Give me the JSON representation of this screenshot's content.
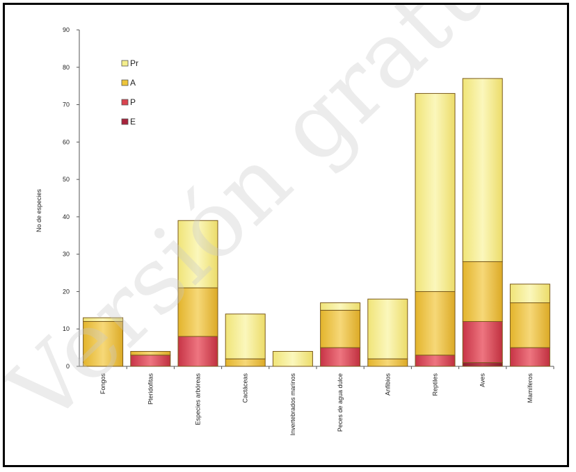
{
  "chart_data": {
    "type": "bar",
    "stacked": true,
    "title": "",
    "xlabel": "",
    "ylabel": "No de especies",
    "ylim": [
      0,
      90
    ],
    "yticks": [
      0,
      10,
      20,
      30,
      40,
      50,
      60,
      70,
      80,
      90
    ],
    "grid": false,
    "legend_position": "top-left",
    "categories": [
      "Fongos",
      "Pteridofitas",
      "Especies arbóreas",
      "Cactáceas",
      "Invertebrados marinos",
      "Peces de agua dulce",
      "Anfibios",
      "Reptiles",
      "Aves",
      "Mamíferos"
    ],
    "series": [
      {
        "name": "E",
        "color": "#a8243c",
        "values": [
          0,
          0,
          0,
          0,
          0,
          0,
          0,
          0,
          1,
          0
        ]
      },
      {
        "name": "P",
        "color": "#d9434f",
        "values": [
          0,
          3,
          8,
          0,
          0,
          5,
          0,
          3,
          11,
          5
        ]
      },
      {
        "name": "A",
        "color": "#edc53a",
        "values": [
          12,
          1,
          13,
          2,
          0,
          10,
          2,
          17,
          16,
          12
        ]
      },
      {
        "name": "Pr",
        "color": "#f4ee8c",
        "values": [
          1,
          0,
          18,
          12,
          4,
          2,
          16,
          53,
          49,
          5
        ]
      }
    ]
  },
  "watermark": "Versión gratuita"
}
